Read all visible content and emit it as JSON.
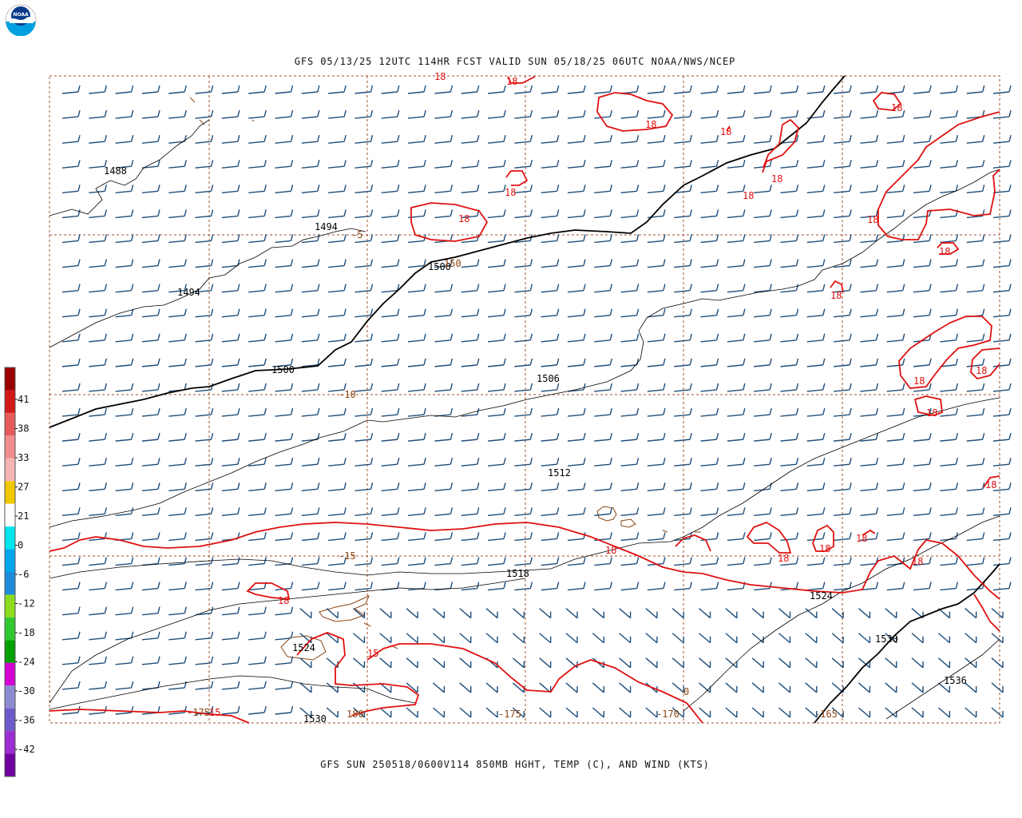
{
  "header": {
    "agency_logo_text": "NOAA",
    "title": "GFS 05/13/25 12UTC 114HR FCST VALID SUN 05/18/25 06UTC NOAA/NWS/NCEP"
  },
  "footer": {
    "caption": "GFS SUN 250518/0600V114 850MB HGHT, TEMP (C), AND WIND (KTS)"
  },
  "colorbar": {
    "labels": [
      "41",
      "38",
      "33",
      "27",
      "21",
      "0",
      "-6",
      "-12",
      "-18",
      "-24",
      "-30",
      "-36",
      "-42"
    ],
    "colors": [
      "#9b0000",
      "#d21919",
      "#e65a5a",
      "#f08c8c",
      "#f5b4b4",
      "#f0c800",
      "#ffffff",
      "#00e5ee",
      "#00a5ee",
      "#1e8cdc",
      "#8cdc1e",
      "#32c832",
      "#00a000",
      "#d200d2",
      "#8c8cd2",
      "#6e5ac8",
      "#9b2dd2",
      "#6e00a0"
    ]
  },
  "map": {
    "height_contour_labels": [
      "1488",
      "1494",
      "1494",
      "1500",
      "1500",
      "1506",
      "1512",
      "1518",
      "1524",
      "1524",
      "1530",
      "1536",
      "1530"
    ],
    "temperature_labels": [
      "18",
      "18",
      "18",
      "18",
      "18",
      "18",
      "18",
      "18",
      "18",
      "18",
      "18",
      "18",
      "18",
      "18",
      "18",
      "18",
      "18",
      "18",
      "18",
      "18",
      "15"
    ],
    "grid_labels": [
      "-5",
      "-10",
      "-15",
      "-175",
      "180",
      "-175",
      "-170",
      "-165",
      "150",
      "0"
    ],
    "colors": {
      "height_contour": "#000000",
      "temperature_contour": "#e01010",
      "coastline": "#8b4513",
      "wind_barb": "#1f4e7a",
      "grid": "#8b4513"
    }
  }
}
